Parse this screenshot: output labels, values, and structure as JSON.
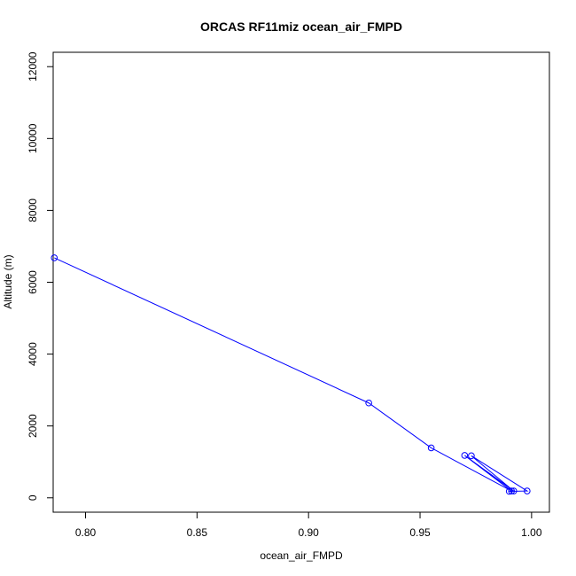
{
  "chart_data": {
    "type": "line",
    "title": "ORCAS RF11miz ocean_air_FMPD",
    "xlabel": "ocean_air_FMPD",
    "ylabel": "Altitude (m)",
    "xlim": [
      0.7855,
      1.008
    ],
    "ylim": [
      -400,
      12400
    ],
    "xticks": [
      0.8,
      0.85,
      0.9,
      0.95,
      1.0
    ],
    "xtick_labels": [
      "0.80",
      "0.85",
      "0.90",
      "0.95",
      "1.00"
    ],
    "yticks": [
      0,
      2000,
      4000,
      6000,
      8000,
      10000,
      12000
    ],
    "ytick_labels": [
      "0",
      "2000",
      "4000",
      "6000",
      "8000",
      "10000",
      "12000"
    ],
    "grid": false,
    "markers": "open-circle",
    "series": [
      {
        "color": "#0000ff",
        "points": [
          {
            "x": 0.786,
            "y": 6680
          },
          {
            "x": 0.927,
            "y": 2640
          },
          {
            "x": 0.955,
            "y": 1390
          },
          {
            "x": 0.991,
            "y": 190
          },
          {
            "x": 0.97,
            "y": 1180
          },
          {
            "x": 0.992,
            "y": 190
          },
          {
            "x": 0.973,
            "y": 1170
          },
          {
            "x": 0.998,
            "y": 190
          },
          {
            "x": 0.99,
            "y": 180
          }
        ]
      }
    ]
  }
}
